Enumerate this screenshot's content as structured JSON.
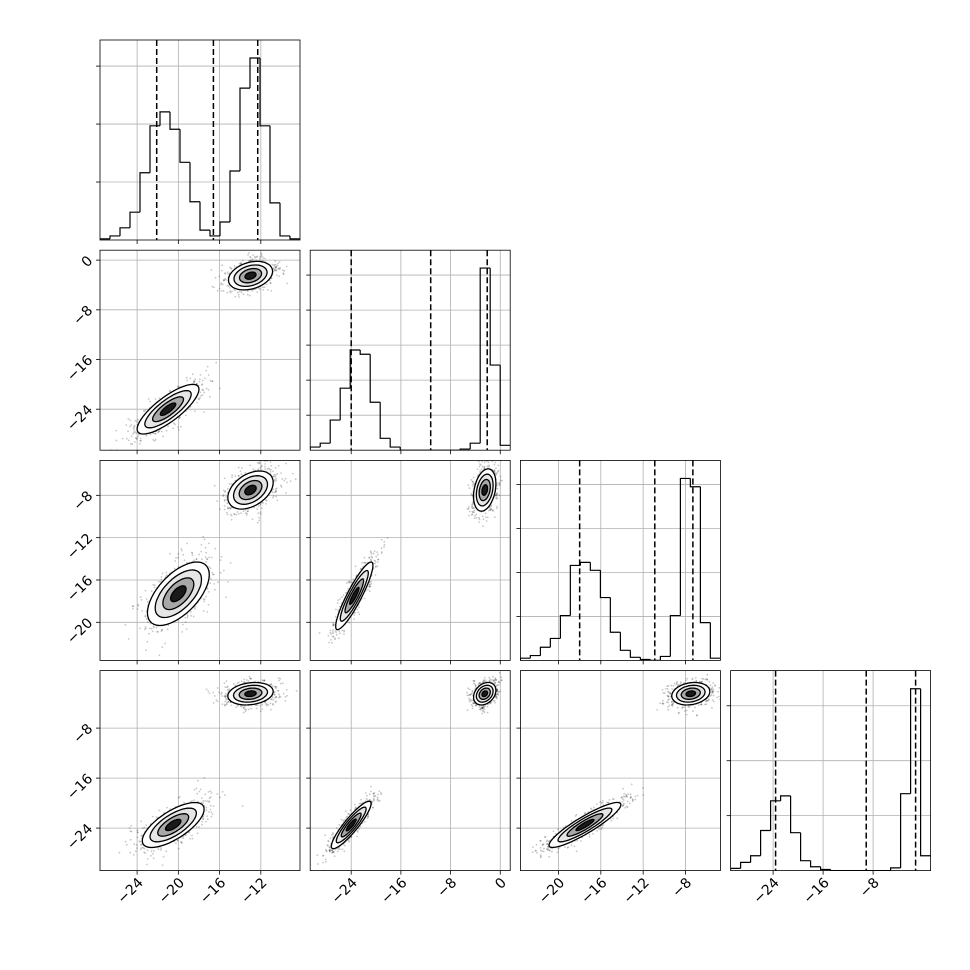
{
  "chart_data": {
    "type": "corner",
    "grid": true,
    "line_color": "#000000",
    "grid_color": "#b0b0b0",
    "scatter_color": "#000000",
    "contour_sigmas": [
      2,
      1.5,
      1,
      0.5
    ],
    "contour_fills": [
      "#ffffff",
      "#e6e6e6",
      "#a8a8a8",
      "#1a1a1a"
    ],
    "axes": [
      {
        "lim": [
          -27.6,
          -8.2
        ],
        "ticks": [
          {
            "value": -24,
            "label": "−24"
          },
          {
            "value": -20,
            "label": "−20"
          },
          {
            "value": -16,
            "label": "−16"
          },
          {
            "value": -12,
            "label": "−12"
          }
        ]
      },
      {
        "lim": [
          -30.6,
          1.6
        ],
        "ticks": [
          {
            "value": 0,
            "label": "0"
          },
          {
            "value": -8,
            "label": "−8"
          },
          {
            "value": -16,
            "label": "−16"
          },
          {
            "value": -24,
            "label": "−24"
          }
        ]
      },
      {
        "lim": [
          -23.6,
          -4.7
        ],
        "ticks": [
          {
            "value": -20,
            "label": "−20"
          },
          {
            "value": -16,
            "label": "−16"
          },
          {
            "value": -12,
            "label": "−12"
          },
          {
            "value": -8,
            "label": "−8"
          }
        ]
      },
      {
        "lim": [
          -30.8,
          1.2
        ],
        "ticks": [
          {
            "value": -24,
            "label": "−24"
          },
          {
            "value": -16,
            "label": "−16"
          },
          {
            "value": -8,
            "label": "−8"
          }
        ]
      }
    ],
    "histograms": [
      {
        "bins": [
          -27.6,
          -26.63,
          -25.66,
          -24.69,
          -23.72,
          -22.75,
          -21.78,
          -20.81,
          -19.84,
          -18.87,
          -17.9,
          -16.93,
          -15.96,
          -14.99,
          -14.02,
          -13.05,
          -12.08,
          -11.11,
          -10.14,
          -9.17,
          -8.2
        ],
        "counts": [
          0.02,
          0.07,
          0.21,
          0.48,
          1.16,
          1.97,
          2.21,
          1.91,
          1.34,
          0.66,
          0.17,
          0.07,
          0.31,
          1.19,
          2.62,
          3.14,
          1.97,
          0.64,
          0.07,
          0.02
        ],
        "ylim": [
          0,
          3.45
        ],
        "yticks": [
          1,
          2,
          3
        ],
        "quantiles": [
          -22.1,
          -16.6,
          -12.3
        ]
      },
      {
        "bins": [
          -30.6,
          -28.99,
          -27.38,
          -25.77,
          -24.16,
          -22.55,
          -20.94,
          -19.33,
          -17.72,
          -16.11,
          -14.5,
          -12.89,
          -11.28,
          -9.67,
          -8.06,
          -6.45,
          -4.84,
          -3.23,
          -1.62,
          -0.01,
          1.6
        ],
        "counts": [
          0.09,
          0.2,
          0.86,
          1.77,
          2.86,
          2.74,
          1.37,
          0.34,
          0.09,
          0,
          0,
          0,
          0,
          0,
          0,
          0.03,
          0.2,
          5.2,
          2.43,
          0.14
        ],
        "ylim": [
          0,
          5.71
        ],
        "yticks": [
          1,
          2,
          3,
          4,
          5
        ],
        "quantiles": [
          -24.0,
          -11.2,
          -2.1
        ]
      },
      {
        "bins": [
          -23.6,
          -22.66,
          -21.71,
          -20.77,
          -19.82,
          -18.88,
          -17.93,
          -16.99,
          -16.04,
          -15.1,
          -14.15,
          -13.21,
          -12.26,
          -11.32,
          -10.37,
          -9.43,
          -8.48,
          -7.54,
          -6.59,
          -5.65,
          -4.7
        ],
        "counts": [
          0.05,
          0.11,
          0.3,
          0.5,
          1.02,
          2.16,
          2.23,
          2.05,
          1.43,
          0.64,
          0.23,
          0.07,
          0.02,
          0,
          0.09,
          1.02,
          4.14,
          3.95,
          0.86,
          0.05
        ],
        "ylim": [
          0,
          4.55
        ],
        "yticks": [
          1,
          2,
          3,
          4
        ],
        "quantiles": [
          -18.0,
          -10.9,
          -7.3
        ]
      },
      {
        "bins": [
          -30.8,
          -29.2,
          -27.6,
          -26,
          -24.4,
          -22.8,
          -21.2,
          -19.6,
          -18,
          -16.4,
          -14.8,
          -13.2,
          -11.6,
          -10,
          -8.4,
          -6.8,
          -5.2,
          -3.6,
          -2,
          -0.4,
          1.2
        ],
        "counts": [
          0.04,
          0.15,
          0.27,
          0.73,
          1.27,
          1.36,
          0.69,
          0.18,
          0.07,
          0.02,
          0,
          0,
          0,
          0,
          0,
          0,
          0.05,
          1.4,
          3.31,
          0.27
        ],
        "ylim": [
          0,
          3.64
        ],
        "yticks": [
          1,
          2,
          3
        ],
        "quantiles": [
          -23.6,
          -9.1,
          -1.2
        ]
      }
    ],
    "pairs": [
      {
        "x_var": 0,
        "y_var": 1,
        "modes": [
          {
            "center": [
              -13,
              -2.5
            ],
            "spread": [
              1.07,
              1.15
            ],
            "corr": 0.3
          },
          {
            "center": [
              -21,
              -24
            ],
            "spread": [
              1.5,
              2.0
            ],
            "corr": 0.8
          }
        ]
      },
      {
        "x_var": 0,
        "y_var": 2,
        "modes": [
          {
            "center": [
              -13,
              -7.5
            ],
            "spread": [
              1.1,
              0.9
            ],
            "corr": 0.4
          },
          {
            "center": [
              -20,
              -17.3
            ],
            "spread": [
              1.5,
              1.5
            ],
            "corr": 0.6
          }
        ]
      },
      {
        "x_var": 1,
        "y_var": 2,
        "modes": [
          {
            "center": [
              -2.5,
              -7.5
            ],
            "spread": [
              0.9,
              1.0
            ],
            "corr": 0.3
          },
          {
            "center": [
              -23.5,
              -17.5
            ],
            "spread": [
              1.5,
              1.6
            ],
            "corr": 0.9
          }
        ]
      },
      {
        "x_var": 0,
        "y_var": 3,
        "modes": [
          {
            "center": [
              -13,
              -2.5
            ],
            "spread": [
              1.1,
              0.9
            ],
            "corr": 0.2
          },
          {
            "center": [
              -20.5,
              -23.5
            ],
            "spread": [
              1.5,
              1.8
            ],
            "corr": 0.7
          }
        ]
      },
      {
        "x_var": 1,
        "y_var": 3,
        "modes": [
          {
            "center": [
              -2.5,
              -2.5
            ],
            "spread": [
              0.9,
              0.9
            ],
            "corr": 0.3
          },
          {
            "center": [
              -24,
              -23.5
            ],
            "spread": [
              1.6,
              1.9
            ],
            "corr": 0.9
          }
        ]
      },
      {
        "x_var": 2,
        "y_var": 3,
        "modes": [
          {
            "center": [
              -7.5,
              -2.5
            ],
            "spread": [
              0.9,
              0.9
            ],
            "corr": 0.2
          },
          {
            "center": [
              -17.5,
              -23.5
            ],
            "spread": [
              1.7,
              1.8
            ],
            "corr": 0.9
          }
        ]
      }
    ]
  }
}
